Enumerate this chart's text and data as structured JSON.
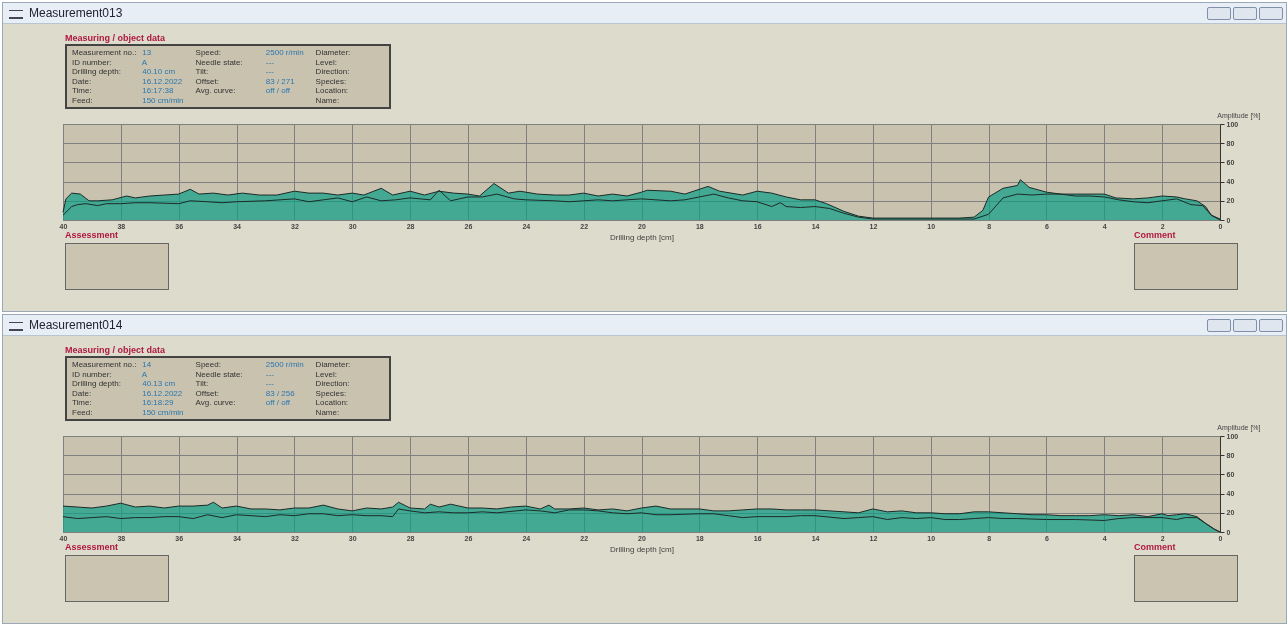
{
  "chart_data": [
    {
      "type": "area",
      "title": "Measurement013",
      "xlabel": "Drilling depth [cm]",
      "ylabel": "Amplitude [%]",
      "xlim": [
        40,
        0
      ],
      "xticks": [
        40,
        38,
        36,
        34,
        32,
        30,
        28,
        26,
        24,
        22,
        20,
        18,
        16,
        14,
        12,
        10,
        8,
        6,
        4,
        2,
        0
      ],
      "ylim": [
        0,
        100
      ],
      "yticks": [
        0,
        20,
        40,
        60,
        80,
        100
      ],
      "grid": true,
      "annotations": [
        "Measuring / object data",
        "Measurement no.: 13",
        "ID number: A",
        "Drilling depth: 40.10 cm",
        "Date: 16.12.2022",
        "Time: 16:17:38",
        "Feed: 150 cm/min",
        "Speed: 2500 r/min",
        "Needle state: ---",
        "Tilt: ---",
        "Offset: 83 / 271",
        "Avg. curve: off / off",
        "Diameter:",
        "Level:",
        "Direction:",
        "Species:",
        "Location:",
        "Name:",
        "Assessment",
        "Comment"
      ],
      "series": [
        {
          "type": "area",
          "color": "#0a9e86",
          "x": [
            40,
            39.9,
            39.7,
            39.4,
            39.1,
            38.8,
            38.3,
            37.8,
            37.5,
            37,
            36.5,
            36,
            35.6,
            35.3,
            34.8,
            34.3,
            33.8,
            33.2,
            32.6,
            32,
            31.5,
            31,
            30.5,
            30,
            29.6,
            29,
            28.6,
            28,
            27.5,
            27,
            26.5,
            26,
            25.6,
            25.1,
            24.6,
            24.2,
            23.6,
            23,
            22.5,
            22,
            21.5,
            21,
            20.5,
            20,
            19.8,
            19,
            18.5,
            17.7,
            17.3,
            16.5,
            16,
            15.5,
            15,
            14.5,
            14,
            13.6,
            13,
            12.5,
            12,
            11,
            10,
            9,
            8.5,
            8.2,
            8,
            7.5,
            7,
            6.9,
            6.6,
            6,
            5.5,
            5,
            4.5,
            4,
            3.6,
            3,
            2.5,
            2,
            1.5,
            1.2,
            0.8,
            0.5,
            0.3,
            0
          ],
          "values": [
            8,
            22,
            28,
            27,
            20,
            20,
            21,
            25,
            23,
            25,
            26,
            27,
            32,
            27,
            28,
            26,
            28,
            26,
            26,
            30,
            28,
            28,
            26,
            28,
            26,
            33,
            26,
            30,
            26,
            30,
            28,
            27,
            25,
            38,
            28,
            30,
            27,
            26,
            26,
            28,
            25,
            27,
            25,
            29,
            31,
            30,
            27,
            35,
            30,
            26,
            30,
            28,
            24,
            21,
            21,
            17,
            9,
            4,
            2,
            2,
            2,
            2,
            3,
            10,
            24,
            33,
            36,
            42,
            34,
            29,
            27,
            27,
            27,
            27,
            23,
            22,
            23,
            25,
            24,
            22,
            20,
            14,
            5,
            1
          ]
        },
        {
          "type": "line",
          "color": "#1c2b28",
          "x": [
            40,
            39.7,
            39.5,
            39.2,
            38.8,
            38.5,
            38,
            37.5,
            37,
            36,
            35.6,
            35,
            34.5,
            34,
            33,
            32,
            31.5,
            31,
            30.5,
            30,
            29.5,
            29,
            28.5,
            28,
            27.3,
            27,
            26.6,
            26,
            25.5,
            25,
            24.4,
            24,
            23,
            22.5,
            22,
            21.5,
            21,
            20.5,
            20,
            19.5,
            19,
            18.5,
            18,
            17.5,
            17,
            16.5,
            16,
            15.5,
            15.2,
            15,
            14.5,
            14,
            13.5,
            13,
            12.5,
            12,
            10,
            8.5,
            8,
            7.5,
            7,
            6.5,
            6,
            5.5,
            5,
            4.5,
            4,
            3.5,
            3,
            2.5,
            2,
            1.5,
            1,
            0.6,
            0.3,
            0
          ],
          "values": [
            5,
            14,
            16,
            17,
            15,
            17,
            17,
            18,
            18,
            17,
            20,
            19,
            18,
            19,
            20,
            22,
            19,
            21,
            23,
            19,
            24,
            20,
            21,
            23,
            21,
            31,
            20,
            24,
            24,
            27,
            22,
            21,
            20,
            19,
            20,
            21,
            20,
            21,
            22,
            21,
            20,
            21,
            24,
            27,
            23,
            20,
            19,
            14,
            18,
            14,
            13,
            14,
            12,
            7,
            3,
            1,
            1,
            1,
            6,
            23,
            27,
            26,
            27,
            27,
            25,
            25,
            24,
            21,
            19,
            18,
            20,
            22,
            16,
            15,
            5,
            0
          ]
        }
      ]
    },
    {
      "type": "area",
      "title": "Measurement014",
      "xlabel": "Drilling depth [cm]",
      "ylabel": "Amplitude [%]",
      "xlim": [
        40,
        0
      ],
      "xticks": [
        40,
        38,
        36,
        34,
        32,
        30,
        28,
        26,
        24,
        22,
        20,
        18,
        16,
        14,
        12,
        10,
        8,
        6,
        4,
        2,
        0
      ],
      "ylim": [
        0,
        100
      ],
      "yticks": [
        0,
        20,
        40,
        60,
        80,
        100
      ],
      "grid": true,
      "annotations": [
        "Measuring / object data",
        "Measurement no.: 14",
        "ID number: A",
        "Drilling depth: 40.13 cm",
        "Date: 16.12.2022",
        "Time: 16:18:29",
        "Feed: 150 cm/min",
        "Speed: 2500 r/min",
        "Needle state: ---",
        "Tilt: ---",
        "Offset: 83 / 256",
        "Avg. curve: off / off",
        "Diameter:",
        "Level:",
        "Direction:",
        "Species:",
        "Location:",
        "Name:",
        "Assessment",
        "Comment"
      ],
      "series": [
        {
          "type": "area",
          "color": "#0a9e86",
          "x": [
            40,
            39.5,
            39,
            38.5,
            38,
            37.5,
            37,
            36.5,
            36,
            35.5,
            35,
            34.8,
            34.5,
            34,
            33.5,
            33,
            32.5,
            32,
            31.5,
            31,
            30.5,
            30,
            29.5,
            29,
            28.6,
            28.4,
            28,
            27.5,
            27.3,
            27,
            26.6,
            26,
            25.5,
            25,
            24.5,
            24,
            23.5,
            23.2,
            23,
            22.5,
            22,
            21.5,
            21,
            20.5,
            20,
            19.5,
            19,
            18,
            17.5,
            17,
            16.5,
            16,
            15.5,
            15,
            14.5,
            14,
            13,
            12.5,
            12,
            11.5,
            11,
            10.5,
            10,
            9.5,
            9,
            8.5,
            8,
            7.5,
            7,
            6.5,
            6,
            5.5,
            5,
            4.5,
            4,
            3.5,
            3,
            2.5,
            2,
            1.8,
            1.5,
            1.2,
            0.8,
            0.5,
            0.2,
            0
          ],
          "values": [
            27,
            26,
            25,
            27,
            30,
            26,
            27,
            25,
            27,
            27,
            28,
            31,
            25,
            27,
            24,
            24,
            23,
            25,
            25,
            28,
            24,
            22,
            25,
            24,
            26,
            31,
            25,
            24,
            29,
            26,
            29,
            25,
            25,
            24,
            26,
            27,
            24,
            28,
            24,
            24,
            25,
            23,
            24,
            22,
            25,
            27,
            24,
            24,
            22,
            22,
            23,
            24,
            24,
            23,
            23,
            23,
            21,
            20,
            24,
            21,
            22,
            20,
            20,
            19,
            19,
            21,
            21,
            20,
            19,
            18,
            18,
            17,
            17,
            17,
            18,
            17,
            18,
            16,
            19,
            17,
            18,
            19,
            16,
            9,
            3,
            0
          ]
        },
        {
          "type": "line",
          "color": "#1c2b28",
          "x": [
            40,
            39.5,
            39,
            38.5,
            38,
            37.5,
            37,
            36.5,
            36,
            35.5,
            35,
            34.5,
            34,
            33.5,
            33,
            32.5,
            32,
            31.5,
            31,
            30.5,
            30,
            29.5,
            29,
            28.6,
            28.4,
            28,
            27.5,
            27,
            26.5,
            26,
            25.5,
            25,
            24,
            23.5,
            23,
            22.5,
            22,
            21.5,
            21,
            20.5,
            20,
            19.5,
            19,
            18,
            17.5,
            17,
            16.5,
            16,
            15,
            14.5,
            14,
            13,
            12.5,
            12,
            11.5,
            11,
            10.5,
            10,
            9.5,
            9,
            8.5,
            8,
            7.5,
            7,
            6,
            5,
            4,
            3.5,
            3,
            2.5,
            2,
            1.5,
            1.2,
            0.8,
            0.5,
            0.2,
            0
          ],
          "values": [
            16,
            14,
            15,
            16,
            14,
            15,
            15,
            16,
            16,
            14,
            18,
            15,
            18,
            17,
            16,
            18,
            17,
            19,
            19,
            17,
            18,
            17,
            17,
            16,
            24,
            22,
            20,
            21,
            20,
            20,
            21,
            20,
            23,
            22,
            20,
            23,
            23,
            22,
            20,
            19,
            20,
            18,
            18,
            19,
            19,
            17,
            15,
            16,
            16,
            17,
            17,
            14,
            15,
            16,
            13,
            15,
            14,
            15,
            13,
            13,
            14,
            15,
            14,
            14,
            13,
            13,
            12,
            14,
            15,
            15,
            15,
            13,
            15,
            15,
            9,
            3,
            0
          ]
        }
      ]
    }
  ]
}
